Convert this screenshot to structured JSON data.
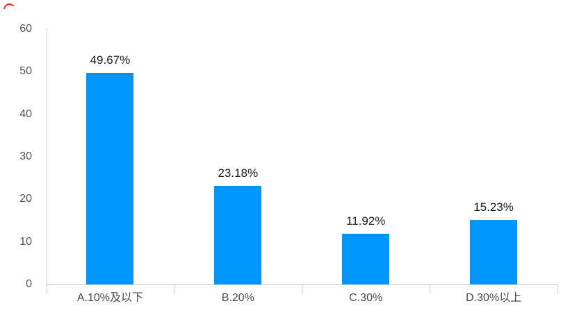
{
  "chart_data": {
    "type": "bar",
    "title": "",
    "xlabel": "",
    "ylabel": "",
    "categories": [
      "A.10%及以下",
      "B.20%",
      "C.30%",
      "D.30%以上"
    ],
    "values": [
      49.67,
      23.18,
      11.92,
      15.23
    ],
    "value_labels": [
      "49.67%",
      "23.18%",
      "11.92%",
      "15.23%"
    ],
    "ylim": [
      0,
      60
    ],
    "yticks": [
      0,
      10,
      20,
      30,
      40,
      50,
      60
    ],
    "grid": false,
    "legend_position": "none",
    "colors": {
      "bar": "#0095fb",
      "axis_line": "#c3cfdf",
      "value_label": "#1b1b1b",
      "y_tick_label": "#555555",
      "x_tick_label": "#4a4a4a"
    }
  },
  "decorations": {
    "pen_mark_color": "#e0362a"
  }
}
